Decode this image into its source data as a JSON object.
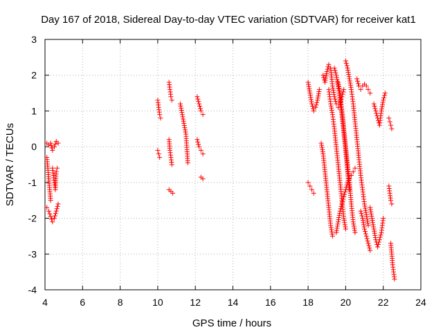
{
  "chart_data": {
    "type": "scatter",
    "title": "Day 167 of 2018, Sidereal Day-to-day VTEC variation (SDTVAR) for receiver kat1",
    "xlabel": "GPS time / hours",
    "ylabel": "SDTVAR / TECUs",
    "xlim": [
      4,
      24
    ],
    "ylim": [
      -4,
      3
    ],
    "xticks": [
      4,
      6,
      8,
      10,
      12,
      14,
      16,
      18,
      20,
      22,
      24
    ],
    "yticks": [
      -4,
      -3,
      -2,
      -1,
      0,
      1,
      2,
      3
    ],
    "grid": true,
    "marker": "+",
    "color": "#ff0000",
    "series": [
      {
        "name": "kat1",
        "segments": [
          [
            [
              4.1,
              0.1
            ],
            [
              4.2,
              0.05
            ],
            [
              4.3,
              0.1
            ],
            [
              4.4,
              -0.1
            ],
            [
              4.5,
              0.0
            ],
            [
              4.6,
              0.15
            ],
            [
              4.7,
              0.1
            ]
          ],
          [
            [
              4.1,
              -0.3
            ],
            [
              4.15,
              -0.6
            ],
            [
              4.2,
              -0.9
            ],
            [
              4.25,
              -1.2
            ],
            [
              4.3,
              -1.5
            ]
          ],
          [
            [
              4.4,
              -0.6
            ],
            [
              4.45,
              -0.8
            ],
            [
              4.5,
              -1.0
            ],
            [
              4.55,
              -1.2
            ],
            [
              4.6,
              -0.7
            ],
            [
              4.65,
              -0.6
            ]
          ],
          [
            [
              4.1,
              -1.7
            ],
            [
              4.2,
              -1.8
            ],
            [
              4.3,
              -1.95
            ],
            [
              4.4,
              -2.1
            ],
            [
              4.5,
              -2.0
            ],
            [
              4.6,
              -1.8
            ],
            [
              4.7,
              -1.6
            ]
          ],
          [
            [
              10.0,
              1.3
            ],
            [
              10.05,
              1.1
            ],
            [
              10.1,
              0.9
            ],
            [
              10.15,
              0.8
            ]
          ],
          [
            [
              10.0,
              -0.1
            ],
            [
              10.05,
              -0.2
            ],
            [
              10.1,
              -0.3
            ]
          ],
          [
            [
              10.6,
              1.8
            ],
            [
              10.65,
              1.6
            ],
            [
              10.7,
              1.4
            ],
            [
              10.75,
              1.3
            ]
          ],
          [
            [
              10.6,
              0.2
            ],
            [
              10.65,
              -0.1
            ],
            [
              10.7,
              -0.3
            ],
            [
              10.75,
              -0.5
            ]
          ],
          [
            [
              10.6,
              -1.2
            ],
            [
              10.7,
              -1.25
            ],
            [
              10.8,
              -1.3
            ]
          ],
          [
            [
              11.2,
              1.2
            ],
            [
              11.5,
              0.35
            ],
            [
              11.6,
              -0.45
            ]
          ],
          [
            [
              12.1,
              1.4
            ],
            [
              12.2,
              1.2
            ],
            [
              12.3,
              1.0
            ],
            [
              12.4,
              0.9
            ]
          ],
          [
            [
              12.1,
              0.2
            ],
            [
              12.2,
              0.0
            ],
            [
              12.3,
              -0.1
            ],
            [
              12.4,
              -0.2
            ]
          ],
          [
            [
              12.3,
              -0.85
            ],
            [
              12.4,
              -0.9
            ]
          ],
          [
            [
              18.0,
              1.8
            ],
            [
              18.1,
              1.5
            ],
            [
              18.2,
              1.2
            ],
            [
              18.3,
              1.0
            ],
            [
              18.4,
              1.1
            ],
            [
              18.5,
              1.3
            ],
            [
              18.6,
              1.6
            ]
          ],
          [
            [
              18.0,
              -1.0
            ],
            [
              18.1,
              -1.1
            ],
            [
              18.2,
              -1.2
            ],
            [
              18.3,
              -1.3
            ]
          ],
          [
            [
              18.8,
              2.0
            ],
            [
              18.9,
              1.8
            ],
            [
              19.0,
              2.1
            ],
            [
              19.1,
              2.3
            ],
            [
              19.2,
              2.2
            ],
            [
              19.3,
              1.7
            ],
            [
              19.4,
              1.4
            ],
            [
              19.5,
              1.2
            ],
            [
              19.6,
              1.1
            ],
            [
              19.7,
              1.2
            ],
            [
              19.8,
              1.4
            ],
            [
              19.9,
              1.6
            ]
          ],
          [
            [
              18.7,
              0.1
            ],
            [
              18.8,
              -0.2
            ],
            [
              18.9,
              -0.7
            ],
            [
              19.0,
              -1.2
            ],
            [
              19.1,
              -1.7
            ],
            [
              19.2,
              -2.2
            ],
            [
              19.3,
              -2.5
            ]
          ],
          [
            [
              19.1,
              1.6
            ],
            [
              19.2,
              1.2
            ],
            [
              19.3,
              0.9
            ],
            [
              19.4,
              0.5
            ],
            [
              19.5,
              0.0
            ],
            [
              19.6,
              -0.5
            ],
            [
              19.7,
              -1.0
            ],
            [
              19.8,
              -1.5
            ],
            [
              19.9,
              -2.0
            ],
            [
              20.0,
              -2.3
            ]
          ],
          [
            [
              19.4,
              2.2
            ],
            [
              19.5,
              2.0
            ],
            [
              19.6,
              1.7
            ],
            [
              19.7,
              1.3
            ],
            [
              19.8,
              0.9
            ],
            [
              19.9,
              0.4
            ],
            [
              20.0,
              -0.1
            ],
            [
              20.1,
              -0.7
            ],
            [
              20.2,
              -1.2
            ]
          ],
          [
            [
              19.6,
              1.8
            ],
            [
              19.7,
              1.5
            ],
            [
              19.8,
              1.0
            ],
            [
              19.9,
              0.5
            ],
            [
              20.0,
              0.0
            ],
            [
              20.1,
              -0.5
            ],
            [
              20.2,
              -1.0
            ],
            [
              20.3,
              -1.6
            ],
            [
              20.4,
              -2.1
            ],
            [
              20.5,
              -2.4
            ]
          ],
          [
            [
              19.5,
              -2.4
            ],
            [
              19.6,
              -2.1
            ],
            [
              19.7,
              -1.8
            ],
            [
              19.8,
              -1.6
            ],
            [
              19.9,
              -1.4
            ],
            [
              20.0,
              -1.2
            ],
            [
              20.1,
              -1.0
            ],
            [
              20.2,
              -0.9
            ],
            [
              20.3,
              -0.8
            ],
            [
              20.4,
              -0.7
            ],
            [
              20.5,
              -0.6
            ]
          ],
          [
            [
              20.0,
              2.4
            ],
            [
              20.1,
              2.2
            ],
            [
              20.2,
              1.9
            ],
            [
              20.3,
              1.6
            ],
            [
              20.4,
              1.2
            ],
            [
              20.5,
              0.7
            ],
            [
              20.6,
              0.2
            ],
            [
              20.7,
              -0.3
            ],
            [
              20.8,
              -0.8
            ],
            [
              20.9,
              -1.2
            ],
            [
              21.0,
              -1.6
            ],
            [
              21.1,
              -1.9
            ],
            [
              21.2,
              -2.2
            ]
          ],
          [
            [
              20.6,
              1.9
            ],
            [
              20.7,
              1.7
            ],
            [
              20.8,
              1.6
            ],
            [
              20.9,
              1.7
            ],
            [
              21.0,
              1.75
            ],
            [
              21.1,
              1.7
            ],
            [
              21.2,
              1.6
            ],
            [
              21.3,
              1.5
            ]
          ],
          [
            [
              21.3,
              -1.7
            ],
            [
              21.4,
              -2.0
            ],
            [
              21.5,
              -2.3
            ],
            [
              21.6,
              -2.6
            ],
            [
              21.7,
              -2.8
            ],
            [
              21.8,
              -2.6
            ],
            [
              21.9,
              -2.4
            ],
            [
              22.0,
              -2.0
            ]
          ],
          [
            [
              21.5,
              1.2
            ],
            [
              21.6,
              1.0
            ],
            [
              21.7,
              0.8
            ],
            [
              21.8,
              0.6
            ],
            [
              21.9,
              1.0
            ],
            [
              22.0,
              1.3
            ],
            [
              22.1,
              1.5
            ]
          ],
          [
            [
              20.8,
              -1.8
            ],
            [
              20.9,
              -2.0
            ],
            [
              21.0,
              -2.3
            ],
            [
              21.1,
              -2.5
            ],
            [
              21.2,
              -2.7
            ],
            [
              21.3,
              -2.9
            ]
          ],
          [
            [
              22.3,
              0.8
            ],
            [
              22.35,
              0.7
            ],
            [
              22.4,
              0.6
            ],
            [
              22.45,
              0.5
            ]
          ],
          [
            [
              22.3,
              -1.1
            ],
            [
              22.35,
              -1.3
            ],
            [
              22.4,
              -1.5
            ],
            [
              22.45,
              -1.6
            ]
          ],
          [
            [
              22.4,
              -2.7
            ],
            [
              22.45,
              -3.0
            ],
            [
              22.5,
              -3.3
            ],
            [
              22.55,
              -3.5
            ],
            [
              22.6,
              -3.7
            ]
          ]
        ]
      }
    ]
  }
}
